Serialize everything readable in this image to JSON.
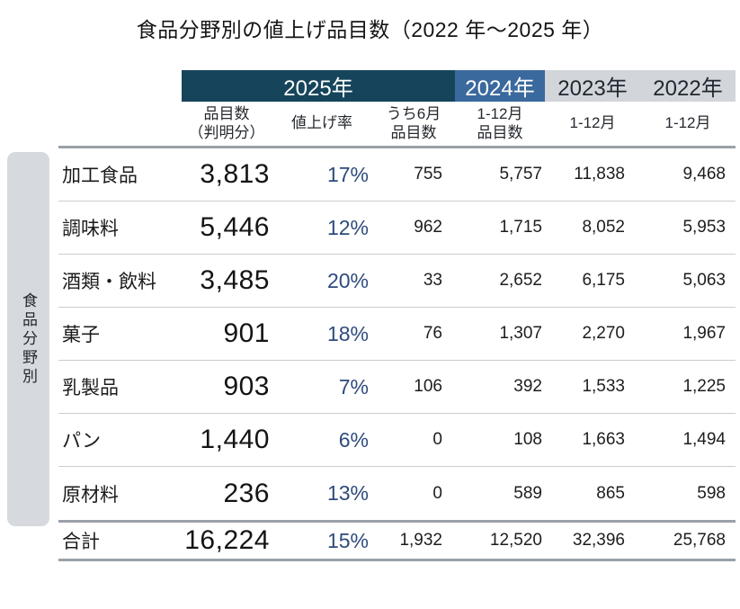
{
  "title": "食品分野別の値上げ品目数（2022 年～2025 年）",
  "sidebar": {
    "label": "食品分野別"
  },
  "header": {
    "y2025": "2025年",
    "y2024": "2024年",
    "y2023": "2023年",
    "y2022": "2022年",
    "col_items_1": "品目数",
    "col_items_2": "（判明分）",
    "col_rate": "値上げ率",
    "col_june_1": "うち6月",
    "col_june_2": "品目数",
    "col_2024_1": "1-12月",
    "col_2024_2": "品目数",
    "col_2023": "1-12月",
    "col_2022": "1-12月"
  },
  "rows": [
    {
      "category": "加工食品",
      "items": "3,813",
      "rate": "17%",
      "june": "755",
      "y2024": "5,757",
      "y2023": "11,838",
      "y2022": "9,468"
    },
    {
      "category": "調味料",
      "items": "5,446",
      "rate": "12%",
      "june": "962",
      "y2024": "1,715",
      "y2023": "8,052",
      "y2022": "5,953"
    },
    {
      "category": "酒類・飲料",
      "items": "3,485",
      "rate": "20%",
      "june": "33",
      "y2024": "2,652",
      "y2023": "6,175",
      "y2022": "5,063"
    },
    {
      "category": "菓子",
      "items": "901",
      "rate": "18%",
      "june": "76",
      "y2024": "1,307",
      "y2023": "2,270",
      "y2022": "1,967"
    },
    {
      "category": "乳製品",
      "items": "903",
      "rate": "7%",
      "june": "106",
      "y2024": "392",
      "y2023": "1,533",
      "y2022": "1,225"
    },
    {
      "category": "パン",
      "items": "1,440",
      "rate": "6%",
      "june": "0",
      "y2024": "108",
      "y2023": "1,663",
      "y2022": "1,494"
    },
    {
      "category": "原材料",
      "items": "236",
      "rate": "13%",
      "june": "0",
      "y2024": "589",
      "y2023": "865",
      "y2022": "598"
    }
  ],
  "total": {
    "category": "合計",
    "items": "16,224",
    "rate": "15%",
    "june": "1,932",
    "y2024": "12,520",
    "y2023": "32,396",
    "y2022": "25,768"
  },
  "colors": {
    "band_2025": "#16455b",
    "band_2024": "#3a699e",
    "band_prev_years": "#d2d6da",
    "rate_text": "#2d4b7d",
    "sidebar_bg": "#d6dade",
    "thick_rule": "#9aa1a8",
    "thin_rule": "#c9cdd1"
  },
  "chart_data": {
    "type": "table",
    "title": "食品分野別の値上げ品目数（2022年～2025年）",
    "row_group_label": "食品分野別",
    "columns": [
      "2025年 品目数（判明分）",
      "2025年 値上げ率",
      "2025年 うち6月品目数",
      "2024年 1-12月品目数",
      "2023年 1-12月",
      "2022年 1-12月"
    ],
    "rows": [
      {
        "category": "加工食品",
        "values": [
          3813,
          "17%",
          755,
          5757,
          11838,
          9468
        ]
      },
      {
        "category": "調味料",
        "values": [
          5446,
          "12%",
          962,
          1715,
          8052,
          5953
        ]
      },
      {
        "category": "酒類・飲料",
        "values": [
          3485,
          "20%",
          33,
          2652,
          6175,
          5063
        ]
      },
      {
        "category": "菓子",
        "values": [
          901,
          "18%",
          76,
          1307,
          2270,
          1967
        ]
      },
      {
        "category": "乳製品",
        "values": [
          903,
          "7%",
          106,
          392,
          1533,
          1225
        ]
      },
      {
        "category": "パン",
        "values": [
          1440,
          "6%",
          0,
          108,
          1663,
          1494
        ]
      },
      {
        "category": "原材料",
        "values": [
          236,
          "13%",
          0,
          589,
          865,
          598
        ]
      },
      {
        "category": "合計",
        "values": [
          16224,
          "15%",
          1932,
          12520,
          32396,
          25768
        ]
      }
    ]
  }
}
